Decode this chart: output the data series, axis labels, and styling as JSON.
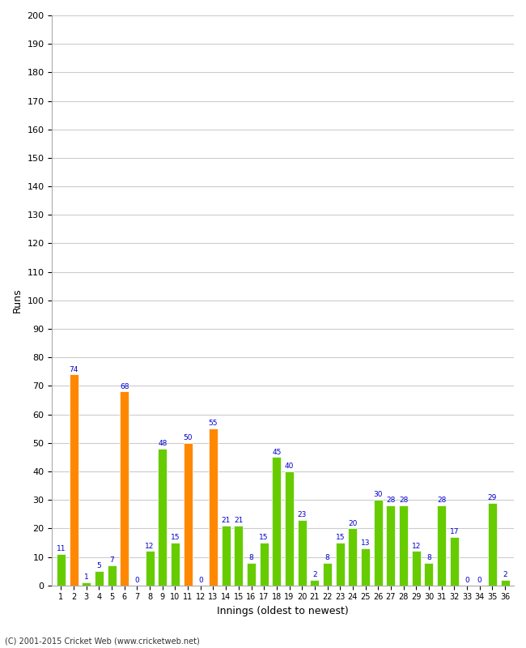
{
  "innings": [
    1,
    2,
    3,
    4,
    5,
    6,
    7,
    8,
    9,
    10,
    11,
    12,
    13,
    14,
    15,
    16,
    17,
    18,
    19,
    20,
    21,
    22,
    23,
    24,
    25,
    26,
    27,
    28,
    29,
    30,
    31,
    32,
    33,
    34,
    35,
    36
  ],
  "values": [
    11,
    74,
    1,
    5,
    7,
    68,
    0,
    12,
    48,
    15,
    50,
    0,
    55,
    21,
    21,
    8,
    15,
    45,
    40,
    23,
    2,
    8,
    15,
    20,
    13,
    30,
    28,
    28,
    12,
    8,
    28,
    17,
    0,
    0,
    29,
    2
  ],
  "colors": [
    "#66cc00",
    "#ff8800",
    "#66cc00",
    "#66cc00",
    "#66cc00",
    "#ff8800",
    "#66cc00",
    "#66cc00",
    "#66cc00",
    "#66cc00",
    "#ff8800",
    "#66cc00",
    "#ff8800",
    "#66cc00",
    "#66cc00",
    "#66cc00",
    "#66cc00",
    "#66cc00",
    "#66cc00",
    "#66cc00",
    "#66cc00",
    "#66cc00",
    "#66cc00",
    "#66cc00",
    "#66cc00",
    "#66cc00",
    "#66cc00",
    "#66cc00",
    "#66cc00",
    "#66cc00",
    "#66cc00",
    "#66cc00",
    "#66cc00",
    "#66cc00",
    "#66cc00",
    "#66cc00"
  ],
  "xlabel": "Innings (oldest to newest)",
  "ylabel": "Runs",
  "ylim": [
    0,
    200
  ],
  "yticks": [
    0,
    10,
    20,
    30,
    40,
    50,
    60,
    70,
    80,
    90,
    100,
    110,
    120,
    130,
    140,
    150,
    160,
    170,
    180,
    190,
    200
  ],
  "background_color": "#ffffff",
  "grid_color": "#cccccc",
  "label_color": "#0000cc",
  "footer": "(C) 2001-2015 Cricket Web (www.cricketweb.net)"
}
